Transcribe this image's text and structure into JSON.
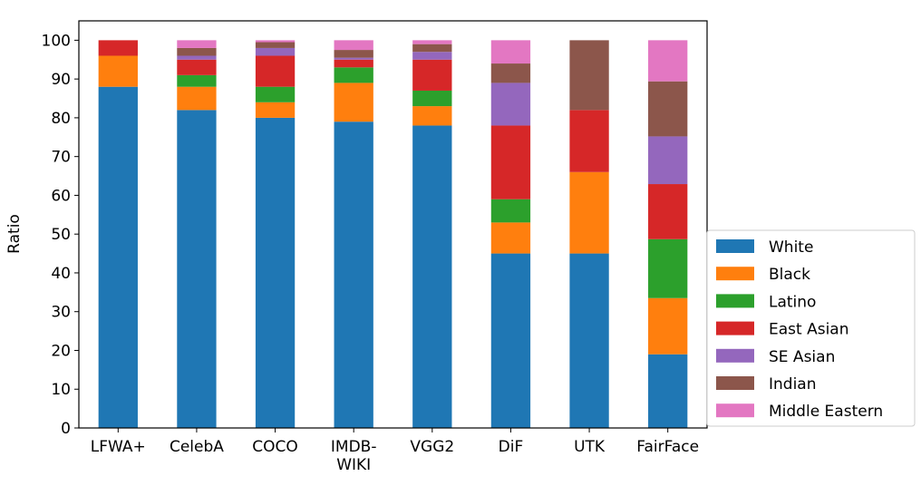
{
  "chart_data": {
    "type": "bar",
    "stacked": true,
    "title": "",
    "xlabel": "",
    "ylabel": "Ratio",
    "ylim": [
      0,
      105
    ],
    "yticks": [
      0,
      10,
      20,
      30,
      40,
      50,
      60,
      70,
      80,
      90,
      100
    ],
    "grid": false,
    "legend_placement": "right, outside plot",
    "categories": [
      "LFWA+",
      "CelebA",
      "COCO",
      "IMDB-\nWIKI",
      "VGG2",
      "DiF",
      "UTK",
      "FairFace"
    ],
    "series": [
      {
        "name": "White",
        "color": "#1f77b4",
        "values": [
          88,
          82,
          80,
          79,
          78,
          45,
          45,
          19
        ]
      },
      {
        "name": "Black",
        "color": "#ff7f0e",
        "values": [
          8,
          6,
          4,
          10,
          5,
          8,
          21,
          14.5
        ]
      },
      {
        "name": "Latino",
        "color": "#2ca02c",
        "values": [
          0,
          3,
          4,
          4,
          4,
          6,
          0,
          15.2
        ]
      },
      {
        "name": "East Asian",
        "color": "#d62728",
        "values": [
          4,
          4,
          8,
          2,
          8,
          19,
          16,
          14.2
        ]
      },
      {
        "name": "SE Asian",
        "color": "#9467bd",
        "values": [
          0,
          1,
          2,
          0.5,
          2,
          11,
          0,
          12.3
        ]
      },
      {
        "name": "Indian",
        "color": "#8c564b",
        "values": [
          0,
          2,
          1.5,
          2,
          2,
          5,
          18,
          14.2
        ]
      },
      {
        "name": "Middle Eastern",
        "color": "#e377c2",
        "values": [
          0,
          2,
          0.5,
          2.5,
          1,
          6,
          0,
          10.6
        ]
      }
    ]
  }
}
